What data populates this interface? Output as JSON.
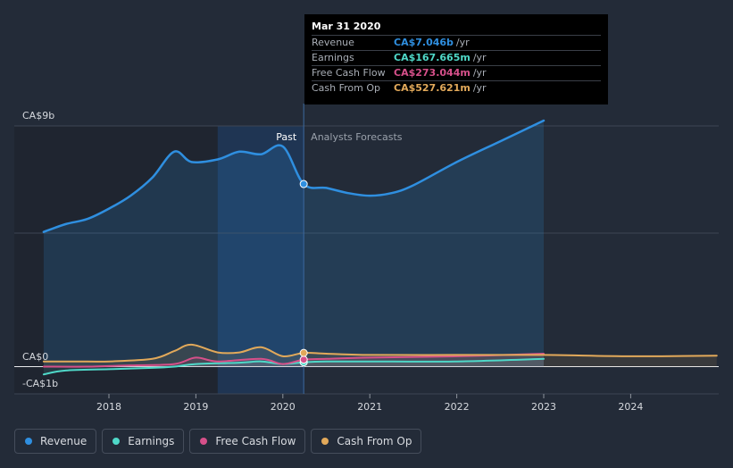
{
  "colors": {
    "revenue": "#2f8fe0",
    "earnings": "#4fd8c8",
    "fcf": "#d6508a",
    "cfo": "#e2a95a"
  },
  "tooltip": {
    "date": "Mar 31 2020",
    "rows": [
      {
        "name": "Revenue",
        "value": "CA$7.046b",
        "unit": "/yr"
      },
      {
        "name": "Earnings",
        "value": "CA$167.665m",
        "unit": "/yr"
      },
      {
        "name": "Free Cash Flow",
        "value": "CA$273.044m",
        "unit": "/yr"
      },
      {
        "name": "Cash From Op",
        "value": "CA$527.621m",
        "unit": "/yr"
      }
    ]
  },
  "legend": [
    {
      "label": "Revenue",
      "key": "revenue"
    },
    {
      "label": "Earnings",
      "key": "earnings"
    },
    {
      "label": "Free Cash Flow",
      "key": "fcf"
    },
    {
      "label": "Cash From Op",
      "key": "cfo"
    }
  ],
  "chart_data": {
    "type": "line",
    "title": "",
    "xlabel": "",
    "ylabel": "",
    "y_tick_labels": [
      "CA$9b",
      "CA$0",
      "-CA$1b"
    ],
    "x_tick_labels": [
      "2018",
      "2019",
      "2020",
      "2021",
      "2022",
      "2023",
      "2024"
    ],
    "xlim": [
      2017.25,
      2024.99
    ],
    "ylim": [
      -1.9,
      9
    ],
    "past_label": "Past",
    "forecast_label": "Analysts Forecasts",
    "highlight_x": 2020.24,
    "shade_start": 2019.25,
    "series": [
      {
        "name": "Revenue",
        "key": "revenue",
        "unit": "CA$b",
        "x": [
          2017.25,
          2017.5,
          2017.75,
          2018.0,
          2018.25,
          2018.5,
          2018.75,
          2018.95,
          2019.25,
          2019.5,
          2019.75,
          2020.0,
          2020.24,
          2020.5,
          2020.75,
          2021.0,
          2021.25,
          2021.5,
          2022.0,
          2022.5,
          2023.0
        ],
        "y": [
          5.2,
          5.5,
          5.7,
          6.1,
          6.6,
          7.3,
          8.3,
          7.9,
          8.0,
          8.3,
          8.2,
          8.5,
          7.05,
          6.9,
          6.7,
          6.6,
          6.7,
          7.0,
          7.9,
          8.7,
          9.5
        ]
      },
      {
        "name": "Earnings",
        "key": "earnings",
        "unit": "CA$b",
        "x": [
          2017.25,
          2017.5,
          2018.0,
          2018.5,
          2018.75,
          2019.0,
          2019.5,
          2019.75,
          2020.0,
          2020.24,
          2020.5,
          2021.0,
          2022.0,
          2023.0
        ],
        "y": [
          -0.3,
          -0.15,
          -0.1,
          -0.05,
          0.0,
          0.1,
          0.15,
          0.2,
          0.1,
          0.17,
          0.2,
          0.2,
          0.2,
          0.3
        ]
      },
      {
        "name": "Free Cash Flow",
        "key": "fcf",
        "unit": "CA$b",
        "x": [
          2017.25,
          2017.75,
          2018.25,
          2018.75,
          2019.0,
          2019.25,
          2019.75,
          2020.0,
          2020.24,
          2020.5,
          2021.0,
          2022.0,
          2023.0
        ],
        "y": [
          0.0,
          0.0,
          0.05,
          0.1,
          0.35,
          0.2,
          0.3,
          0.1,
          0.27,
          0.3,
          0.35,
          0.4,
          0.5
        ]
      },
      {
        "name": "Cash From Op",
        "key": "cfo",
        "unit": "CA$b",
        "x": [
          2017.25,
          2017.75,
          2018.0,
          2018.5,
          2018.75,
          2018.95,
          2019.25,
          2019.5,
          2019.75,
          2020.0,
          2020.24,
          2020.5,
          2021.0,
          2022.0,
          2023.0,
          2024.0,
          2024.99
        ],
        "y": [
          0.2,
          0.2,
          0.2,
          0.3,
          0.6,
          0.85,
          0.55,
          0.55,
          0.75,
          0.4,
          0.53,
          0.5,
          0.45,
          0.45,
          0.45,
          0.4,
          0.42
        ]
      }
    ]
  }
}
